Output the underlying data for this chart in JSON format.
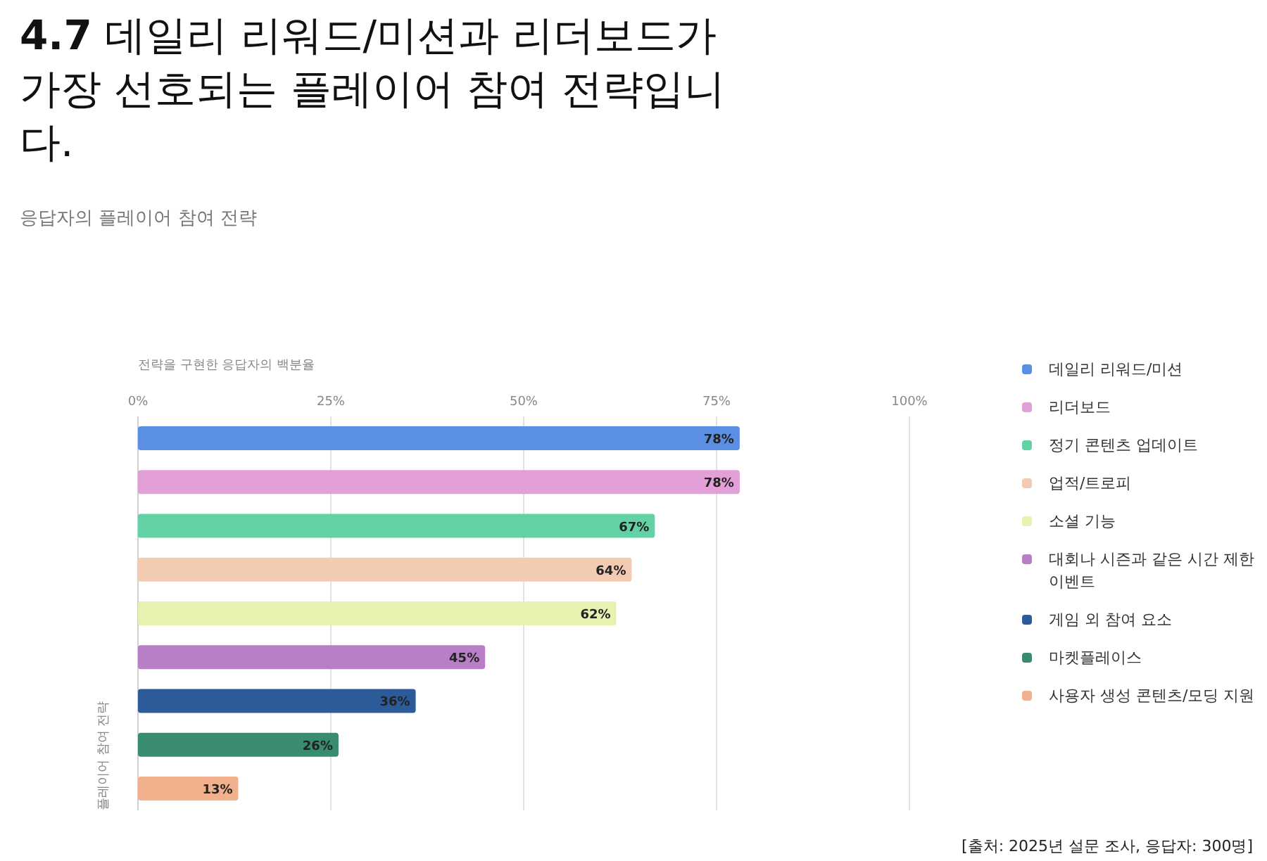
{
  "chart_data": {
    "type": "bar",
    "orientation": "horizontal",
    "stacked": true,
    "title": "**4.7** 데일리 리워드/미션과 리더보드가 가장 선호되는 플레이어 참여 전략입니다.",
    "subtitle": "응답자의 플레이어 참여 전략",
    "xlabel": "전략을 구현한 응답자의 백분율",
    "ylabel": "플레이어 참여 전략",
    "categories": [
      null,
      null,
      null,
      null,
      null,
      null,
      null,
      null,
      null
    ],
    "series": [
      {
        "name": "데일리 리워드/미션",
        "color": "#5b8fe3",
        "values": [
          78,
          null,
          null,
          null,
          null,
          null,
          null,
          null,
          null
        ],
        "value_labels": [
          "78%",
          null,
          null,
          null,
          null,
          null,
          null,
          null,
          null
        ]
      },
      {
        "name": "리더보드",
        "color": "#e3a0d8",
        "values": [
          null,
          78,
          null,
          null,
          null,
          null,
          null,
          null,
          null
        ],
        "value_labels": [
          null,
          "78%",
          null,
          null,
          null,
          null,
          null,
          null,
          null
        ]
      },
      {
        "name": "정기 콘텐츠 업데이트",
        "color": "#62d1a3",
        "values": [
          null,
          null,
          67,
          null,
          null,
          null,
          null,
          null,
          null
        ],
        "value_labels": [
          null,
          null,
          "67%",
          null,
          null,
          null,
          null,
          null,
          null
        ]
      },
      {
        "name": "업적/트로피",
        "color": "#f2cbb2",
        "values": [
          null,
          null,
          null,
          64,
          null,
          null,
          null,
          null,
          null
        ],
        "value_labels": [
          null,
          null,
          null,
          "64%",
          null,
          null,
          null,
          null,
          null
        ]
      },
      {
        "name": "소셜 기능",
        "color": "#e8f2b0",
        "values": [
          null,
          null,
          null,
          null,
          62,
          null,
          null,
          null,
          null
        ],
        "value_labels": [
          null,
          null,
          null,
          null,
          "62%",
          null,
          null,
          null,
          null
        ]
      },
      {
        "name": "대회나 시즌과 같은 시간 제한 이벤트",
        "color": "#b87fc6",
        "values": [
          null,
          null,
          null,
          null,
          null,
          45,
          null,
          null,
          null
        ],
        "value_labels": [
          null,
          null,
          null,
          null,
          null,
          "45%",
          null,
          null,
          null
        ]
      },
      {
        "name": "게임 외 참여 요소",
        "color": "#2d5b9a",
        "values": [
          null,
          null,
          null,
          null,
          null,
          null,
          36,
          null,
          null
        ],
        "value_labels": [
          null,
          null,
          null,
          null,
          null,
          null,
          "36%",
          null,
          null
        ]
      },
      {
        "name": "마켓플레이스",
        "color": "#3a8c6e",
        "values": [
          null,
          null,
          null,
          null,
          null,
          null,
          null,
          26,
          null
        ],
        "value_labels": [
          null,
          null,
          null,
          null,
          null,
          null,
          null,
          "26%",
          null
        ]
      },
      {
        "name": "사용자 생성 콘텐츠/모딩 지원",
        "color": "#f2b08c",
        "values": [
          null,
          null,
          null,
          null,
          null,
          null,
          null,
          null,
          13
        ],
        "value_labels": [
          null,
          null,
          null,
          null,
          null,
          null,
          null,
          null,
          "13%"
        ]
      }
    ],
    "xlim": [
      0,
      100
    ],
    "xticks": [
      {
        "value": 0,
        "label": "0%"
      },
      {
        "value": 25,
        "label": "25%"
      },
      {
        "value": 50,
        "label": "50%"
      },
      {
        "value": 75,
        "label": "75%"
      },
      {
        "value": 100,
        "label": "100%"
      }
    ],
    "grid": "x",
    "legend": "right",
    "tick_labels": "x",
    "annotations": [
      "[출처: 2025년 설문 조사, 응답자: 300명]"
    ]
  }
}
